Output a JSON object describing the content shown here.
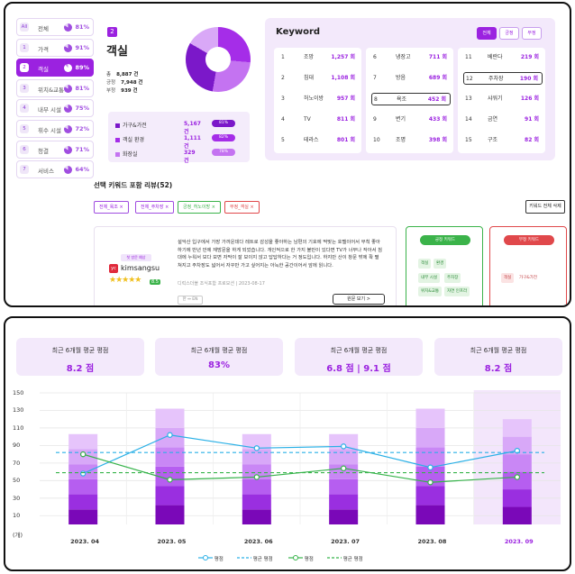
{
  "sidebar": {
    "items": [
      {
        "num": "All",
        "label": "전체",
        "pct": "81%"
      },
      {
        "num": "1",
        "label": "가격",
        "pct": "91%"
      },
      {
        "num": "2",
        "label": "객실",
        "pct": "89%"
      },
      {
        "num": "3",
        "label": "위치&교통",
        "pct": "81%"
      },
      {
        "num": "4",
        "label": "내부 시설",
        "pct": "75%"
      },
      {
        "num": "5",
        "label": "휘수 시설",
        "pct": "72%"
      },
      {
        "num": "6",
        "label": "청결",
        "pct": "71%"
      },
      {
        "num": "7",
        "label": "서비스",
        "pct": "64%"
      }
    ]
  },
  "summary": {
    "badge": "2",
    "title": "객실",
    "total_label": "총",
    "total": "8,887 건",
    "pos_label": "긍정",
    "pos": "7,948 건",
    "neg_label": "부정",
    "neg": "939 건",
    "colors": {
      "accent": "#9b22e0"
    },
    "cats": [
      {
        "name": "가구&가전",
        "count": "5,167 건",
        "pct": "81%",
        "color": "#7b18c9"
      },
      {
        "name": "객실 환경",
        "count": "1,111 건",
        "pct": "82%",
        "color": "#a52de8"
      },
      {
        "name": "화장실",
        "count": "329 건",
        "pct": "78%",
        "color": "#c473f1"
      }
    ]
  },
  "keyword": {
    "title": "Keyword",
    "tabs": [
      "전체",
      "긍정",
      "부정"
    ],
    "items": [
      {
        "n": "1",
        "w": "조망",
        "v": "1,257 회"
      },
      {
        "n": "2",
        "w": "침대",
        "v": "1,108 회"
      },
      {
        "n": "3",
        "w": "허노이방",
        "v": "957 회"
      },
      {
        "n": "4",
        "w": "TV",
        "v": "811 회"
      },
      {
        "n": "5",
        "w": "테라스",
        "v": "801 회"
      },
      {
        "n": "6",
        "w": "냉장고",
        "v": "711 회"
      },
      {
        "n": "7",
        "w": "방음",
        "v": "689 회"
      },
      {
        "n": "8",
        "w": "욕조",
        "v": "452 회"
      },
      {
        "n": "9",
        "w": "변기",
        "v": "433 회"
      },
      {
        "n": "10",
        "w": "조명",
        "v": "398 회"
      },
      {
        "n": "11",
        "w": "베란다",
        "v": "219 회"
      },
      {
        "n": "12",
        "w": "주차장",
        "v": "190 회"
      },
      {
        "n": "13",
        "w": "샤워기",
        "v": "126 회"
      },
      {
        "n": "14",
        "w": "금연",
        "v": "91 회"
      },
      {
        "n": "15",
        "w": "구조",
        "v": "82 회"
      }
    ]
  },
  "selected": {
    "title": "선택 키워드 포함 리뷰(52)",
    "chips": [
      "전체_욕조 ×",
      "전체_주차장 ×",
      "긍정_허노이방 ×",
      "부정_객실 ×"
    ],
    "delete_all": "키워드 전체 삭제"
  },
  "review": {
    "tag": "첫 방문 예상",
    "user": "kimsangsu",
    "stars": "★★★★★",
    "score": "8.5",
    "text": "설악산 입구에서 가장 가까운데다 레트로 감성을 좋아하는 남편의 기호에 딱맞는 호텔이어서 무척 좋아하기에 반년 만에 재방문을 하게 되었습니다. 개인적으로 한 가지 불만이 있다면 TV가 너무나 작아서 침대에 누워서 보다 보면 자막이 잘 보이지 않고 답답하다는 거 정도입니다. 하지만 산이 창문 밖에 확 펼쳐지고 주차장도 넓어서 자꾸만 가고 싶어지는 아늑한 공간이어서 앞에 읽니다.",
    "meta": "디럭스더블 조식포함 프로모션 | 2023-08-17",
    "lang": "한 ↔ EN",
    "more": "원문 보기 >"
  },
  "pos_box": {
    "title": "긍정 키워드",
    "chips": [
      "객실",
      "환경",
      "내부 시설",
      "주차장",
      "위치&교통",
      "자연 인프라"
    ]
  },
  "neg_box": {
    "title": "부정 키워드",
    "chips": [
      "객실",
      "가구&가전"
    ]
  },
  "cards": [
    {
      "label": "최근 6개월 평균 평점",
      "value": "8.2 점"
    },
    {
      "label": "최근 6개월 평균 평점",
      "value": "83%"
    },
    {
      "label": "최근 6개월 평균 평점",
      "value": "6.8 점 | 9.1 점"
    },
    {
      "label": "최근 6개월 평균 평점",
      "value": "8.2 점"
    }
  ],
  "chart_data": {
    "type": "bar",
    "categories": [
      "2023. 04",
      "2023. 05",
      "2023. 06",
      "2023. 07",
      "2023. 08",
      "2023. 09"
    ],
    "bar_totals": [
      103,
      132,
      103,
      103,
      132,
      120
    ],
    "series": [
      {
        "name": "평점",
        "values": [
          58,
          102,
          87,
          89,
          65,
          84
        ],
        "color": "#2ab0e6"
      },
      {
        "name": "평균 평점",
        "values": [
          82,
          82,
          82,
          82,
          82,
          82
        ],
        "color": "#2ab0e6"
      },
      {
        "name": "평점",
        "values": [
          80,
          51,
          54,
          64,
          48,
          54
        ],
        "color": "#36b34a"
      },
      {
        "name": "평균 평점",
        "values": [
          59,
          59,
          59,
          59,
          59,
          59
        ],
        "color": "#36b34a"
      }
    ],
    "yticks": [
      10,
      30,
      50,
      70,
      90,
      110,
      130,
      150
    ],
    "ylabel": "(개)",
    "ylim": [
      0,
      150
    ],
    "grid": true,
    "highlight_category": "2023. 09",
    "legend": [
      "평점",
      "평균 평점",
      "평점",
      "평균 평점"
    ]
  }
}
